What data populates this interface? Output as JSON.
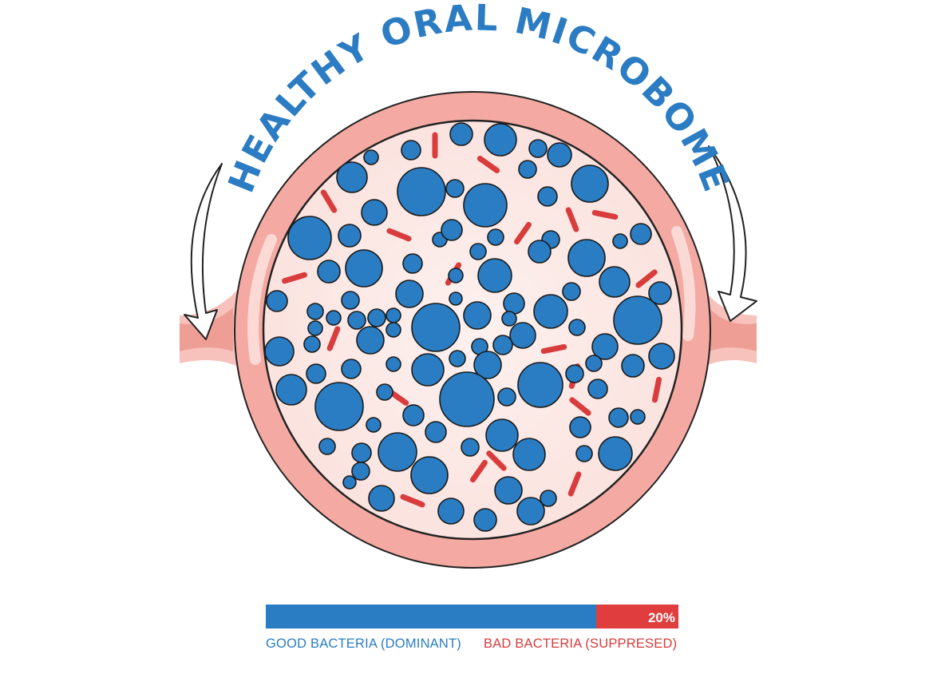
{
  "title": "HEALTHY ORAL MICROBOME",
  "colors": {
    "good_bacteria": "#2a7dc2",
    "bad_bacteria": "#d93c3c",
    "title": "#2b7cc2",
    "tissue": "#f4aaa3",
    "interior": "#fbe7e4"
  },
  "ratio_bar": {
    "good_fraction": 0.8,
    "bad_fraction": 0.2,
    "percent_label": "20%",
    "good_label": "GOOD BACTERIA (DOMINANT)",
    "bad_label": "BAD BACTERIA (SUPPRESED)"
  },
  "icons": [
    "curved-arrow-left-icon",
    "curved-arrow-right-icon"
  ]
}
